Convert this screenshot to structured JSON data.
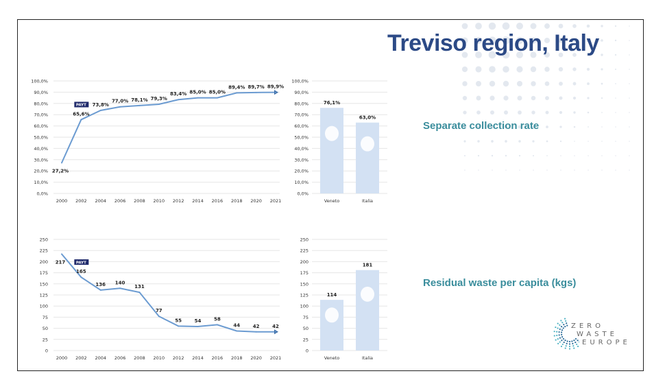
{
  "slide": {
    "title": "Treviso region, Italy",
    "label_collection": "Separate collection rate",
    "label_residual": "Residual waste per capita (kgs)",
    "logo_text": [
      "ZERO",
      "WASTE",
      "EUROPE"
    ]
  },
  "colors": {
    "title": "#2c4a86",
    "label": "#3a8d9c",
    "line": "#6b9bd1",
    "bar": "#d3e1f3",
    "badge": "#1f2a6b"
  },
  "chart_data": [
    {
      "type": "line",
      "title": "",
      "xlabel": "",
      "ylabel": "",
      "ylim": [
        0,
        100
      ],
      "yticks": [
        "0,0%",
        "10,0%",
        "20,0%",
        "30,0%",
        "40,0%",
        "50,0%",
        "60,0%",
        "70,0%",
        "80,0%",
        "90,0%",
        "100,0%"
      ],
      "categories": [
        "2000",
        "2002",
        "2004",
        "2006",
        "2008",
        "2010",
        "2012",
        "2014",
        "2016",
        "2018",
        "2020",
        "2021"
      ],
      "values": [
        27.2,
        65.6,
        73.8,
        77.0,
        78.1,
        79.3,
        83.4,
        85.0,
        85.0,
        89.4,
        89.7,
        89.9
      ],
      "data_labels": [
        "27,2%",
        "65,6%",
        "73,8%",
        "77,0%",
        "78,1%",
        "79,3%",
        "83,4%",
        "85,0%",
        "85,0%",
        "89,4%",
        "89,7%",
        "89,9%"
      ],
      "annotation": "PAYT",
      "annotation_index": 1
    },
    {
      "type": "bar",
      "ylim": [
        0,
        100
      ],
      "yticks": [
        "0,0%",
        "10,0%",
        "20,0%",
        "30,0%",
        "40,0%",
        "50,0%",
        "60,0%",
        "70,0%",
        "80,0%",
        "90,0%",
        "100,0%"
      ],
      "categories": [
        "Veneto",
        "Italia"
      ],
      "values": [
        76.1,
        63.0
      ],
      "data_labels": [
        "76,1%",
        "63,0%"
      ]
    },
    {
      "type": "line",
      "ylim": [
        0,
        250
      ],
      "yticks": [
        "0",
        "25",
        "50",
        "75",
        "100",
        "125",
        "150",
        "175",
        "200",
        "225",
        "250"
      ],
      "categories": [
        "2000",
        "2002",
        "2004",
        "2006",
        "2008",
        "2010",
        "2012",
        "2014",
        "2016",
        "2018",
        "2020",
        "2021"
      ],
      "values": [
        217,
        165,
        136,
        140,
        131,
        77,
        55,
        54,
        58,
        44,
        42,
        42
      ],
      "data_labels": [
        "217",
        "165",
        "136",
        "140",
        "131",
        "77",
        "55",
        "54",
        "58",
        "44",
        "42",
        "42"
      ],
      "annotation": "PAYT",
      "annotation_index": 1
    },
    {
      "type": "bar",
      "ylim": [
        0,
        250
      ],
      "yticks": [
        "0",
        "25",
        "50",
        "75",
        "100",
        "125",
        "150",
        "175",
        "200",
        "225",
        "250"
      ],
      "categories": [
        "Veneto",
        "Italia"
      ],
      "values": [
        114,
        181
      ],
      "data_labels": [
        "114",
        "181"
      ]
    }
  ]
}
